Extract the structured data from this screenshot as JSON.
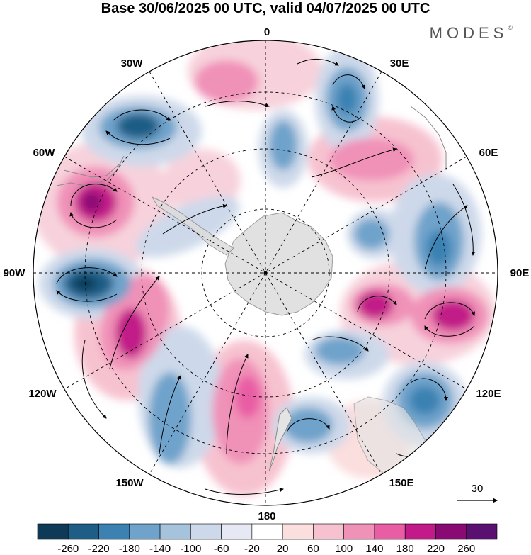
{
  "title": "Base 30/06/2025 00 UTC, valid 04/07/2025 00 UTC",
  "brand": {
    "name": "MODES",
    "mark": "©"
  },
  "longitude_labels": {
    "lon_0": "0",
    "lon_30e": "30E",
    "lon_60e": "60E",
    "lon_90e": "90E",
    "lon_120e": "120E",
    "lon_150e": "150E",
    "lon_180": "180",
    "lon_150w": "150W",
    "lon_120w": "120W",
    "lon_90w": "90W",
    "lon_60w": "60W",
    "lon_30w": "30W"
  },
  "reference_vector": {
    "label": "30"
  },
  "colorbar": {
    "ticks": [
      "-260",
      "-220",
      "-180",
      "-140",
      "-100",
      "-60",
      "-20",
      "20",
      "60",
      "100",
      "140",
      "180",
      "220",
      "260"
    ],
    "colors": [
      "#0f3a57",
      "#1d5d86",
      "#3b82b3",
      "#6fa3cb",
      "#a6c3de",
      "#cdd9ea",
      "#e6e8f3",
      "#ffffff",
      "#fbdede",
      "#f7c2d0",
      "#f091b8",
      "#e95da4",
      "#c21a88",
      "#8a0a74",
      "#5a1070"
    ]
  },
  "field_colors": {
    "blue_strong": "#1d5d86",
    "blue_mid": "#6fa3cb",
    "blue_light": "#cdd9ea",
    "pink_light": "#f7d2dc",
    "pink_mid": "#f091b8",
    "magenta": "#c21a88",
    "land": "#dcdcdc"
  }
}
